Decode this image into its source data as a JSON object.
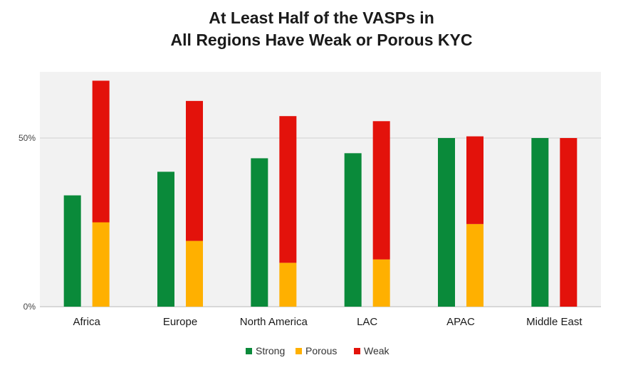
{
  "chart_data": {
    "type": "bar",
    "title": [
      "At Least Half of the VASPs in",
      "All Regions Have Weak or Porous KYC"
    ],
    "categories": [
      "Africa",
      "Europe",
      "North America",
      "LAC",
      "APAC",
      "Middle East"
    ],
    "series": [
      {
        "name": "Strong",
        "color": "#0a8a3a",
        "values": [
          33,
          40,
          44,
          45.5,
          50,
          50
        ]
      },
      {
        "name": "Porous",
        "color": "#ffb000",
        "values": [
          25,
          19.5,
          13,
          14,
          24.5,
          0
        ]
      },
      {
        "name": "Weak",
        "color": "#e3120b",
        "values": [
          42,
          41.5,
          43.5,
          41,
          26,
          50
        ]
      }
    ],
    "stacks": [
      [
        "Strong"
      ],
      [
        "Porous",
        "Weak"
      ]
    ],
    "yticks": [
      {
        "value": 0,
        "label": "0%"
      },
      {
        "value": 50,
        "label": "50%"
      }
    ],
    "ylim": [
      0,
      70
    ],
    "grid": true,
    "legend_position": "bottom",
    "colors": {
      "plot_background": "#f2f2f2",
      "gridline": "#d0d0d0"
    }
  }
}
